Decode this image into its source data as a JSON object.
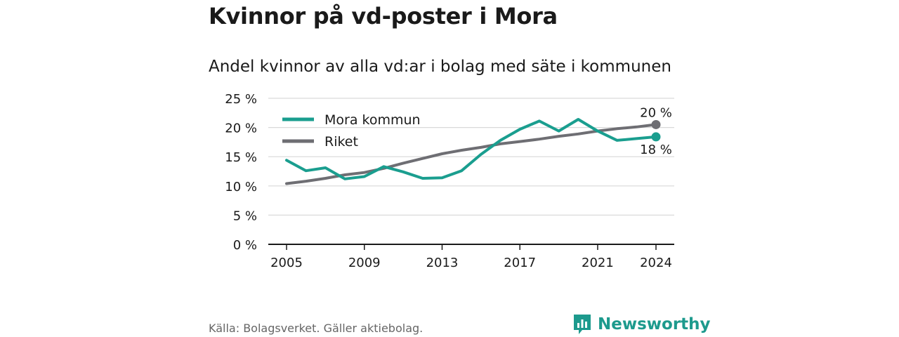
{
  "header": {
    "title": "Kvinnor på vd-poster i Mora"
  },
  "footer": {
    "source": "Källa: Bolagsverket. Gäller aktiebolag.",
    "brand": "Newsworthy"
  },
  "icons": {
    "brand_logo": "bar-chart-speech-bubble-icon"
  },
  "colors": {
    "mora": "#1a9e8f",
    "riket": "#6e6e73",
    "brand": "#1d9a8d"
  },
  "chart_data": {
    "type": "line",
    "title": "Kvinnor på vd-poster i Mora",
    "subtitle": "Andel kvinnor av alla vd:ar i bolag med säte i kommunen",
    "xlabel": "",
    "ylabel": "",
    "x": [
      2005,
      2006,
      2007,
      2008,
      2009,
      2010,
      2011,
      2012,
      2013,
      2014,
      2015,
      2016,
      2017,
      2018,
      2019,
      2020,
      2021,
      2022,
      2023,
      2024
    ],
    "x_ticks": [
      "2005",
      "2009",
      "2013",
      "2017",
      "2021",
      "2024"
    ],
    "y_ticks": [
      "0 %",
      "5 %",
      "10 %",
      "15 %",
      "20 %",
      "25 %"
    ],
    "ylim": [
      0,
      25
    ],
    "grid": true,
    "legend_position": "top-left",
    "series": [
      {
        "name": "Mora kommun",
        "color": "#1a9e8f",
        "values": [
          14.4,
          12.6,
          13.1,
          11.2,
          11.6,
          13.3,
          12.4,
          11.3,
          11.4,
          12.6,
          15.4,
          17.8,
          19.7,
          21.1,
          19.4,
          21.4,
          19.4,
          17.8,
          18.1,
          18.4
        ],
        "end_label": "18 %"
      },
      {
        "name": "Riket",
        "color": "#6e6e73",
        "values": [
          10.4,
          10.8,
          11.3,
          11.9,
          12.3,
          13.0,
          13.9,
          14.7,
          15.5,
          16.1,
          16.6,
          17.2,
          17.6,
          18.0,
          18.5,
          18.9,
          19.4,
          19.8,
          20.1,
          20.5
        ],
        "end_label": "20 %"
      }
    ]
  }
}
